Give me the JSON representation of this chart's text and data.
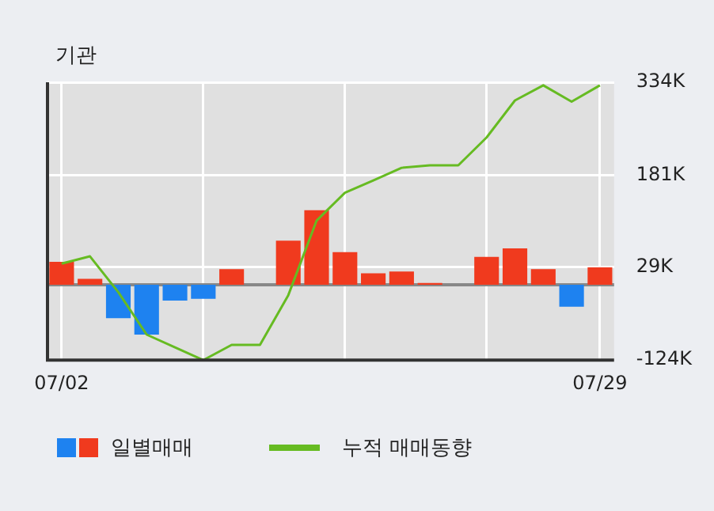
{
  "chart_data": {
    "type": "bar",
    "title": "기관",
    "categories": [
      "07/02",
      null,
      null,
      null,
      null,
      null,
      null,
      null,
      null,
      null,
      null,
      null,
      null,
      null,
      null,
      null,
      null,
      null,
      null,
      "07/29"
    ],
    "series": [
      {
        "name": "일별매매",
        "colors": [
          "#f03a1e",
          "#f03a1e",
          "#1e82f0",
          "#1e82f0",
          "#1e82f0",
          "#1e82f0",
          "#f03a1e",
          "#f03a1e",
          "#f03a1e",
          "#f03a1e",
          "#f03a1e",
          "#f03a1e",
          "#f03a1e",
          "#f03a1e",
          "#f03a1e",
          "#f03a1e",
          "#f03a1e",
          "#f03a1e",
          "#1e82f0",
          "#f03a1e"
        ],
        "values": [
          38000,
          10000,
          -55000,
          -82000,
          -26000,
          -23000,
          26000,
          0,
          73000,
          123000,
          54000,
          19000,
          22000,
          3000,
          0,
          46000,
          60000,
          26000,
          -36000,
          29000
        ]
      },
      {
        "name": "누적 매매동향",
        "type": "line",
        "color": "#66bb22",
        "values": [
          35000,
          47000,
          -12000,
          -82000,
          -103000,
          -124000,
          -99000,
          -99000,
          -17000,
          106000,
          152000,
          172000,
          193000,
          197000,
          197000,
          243000,
          304000,
          329000,
          302000,
          329000
        ]
      }
    ],
    "ylim": [
      -124000,
      334000
    ],
    "yticks": [
      {
        "value": -124000,
        "label": "-124K"
      },
      {
        "value": 29000,
        "label": "29K"
      },
      {
        "value": 181000,
        "label": "181K"
      },
      {
        "value": 334000,
        "label": "334K"
      }
    ],
    "ref_lines": [
      {
        "axis": "y",
        "value": 0,
        "color": "#888888"
      }
    ],
    "grid": true,
    "legend": "bottom",
    "marker": "none",
    "line_style": "solid"
  }
}
